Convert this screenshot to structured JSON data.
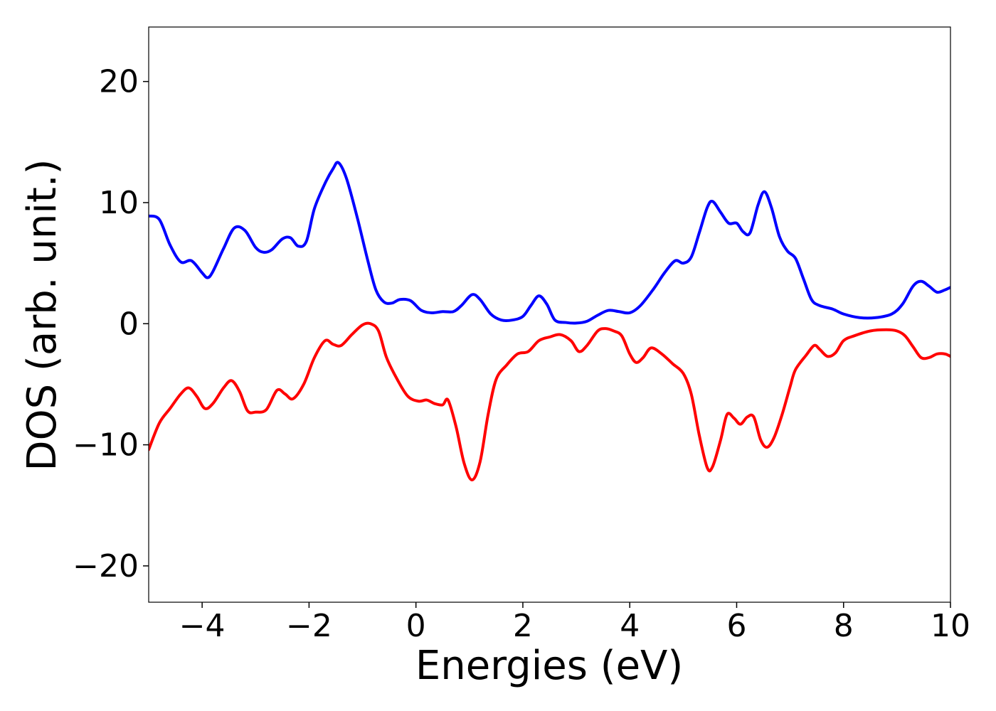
{
  "chart_data": {
    "type": "line",
    "title": "",
    "xlabel": "Energies (eV)",
    "ylabel": "DOS (arb. unit.)",
    "xlim": [
      -5,
      10
    ],
    "ylim": [
      -23,
      24.5
    ],
    "grid": false,
    "legend": "none",
    "x_ticks": [
      {
        "value": -4,
        "label": "−4"
      },
      {
        "value": -2,
        "label": "−2"
      },
      {
        "value": 0,
        "label": "0"
      },
      {
        "value": 2,
        "label": "2"
      },
      {
        "value": 4,
        "label": "4"
      },
      {
        "value": 6,
        "label": "6"
      },
      {
        "value": 8,
        "label": "8"
      },
      {
        "value": 10,
        "label": "10"
      }
    ],
    "y_ticks": [
      {
        "value": 20,
        "label": "20"
      },
      {
        "value": 10,
        "label": "10"
      },
      {
        "value": 0,
        "label": "0"
      },
      {
        "value": -10,
        "label": "−10"
      },
      {
        "value": -20,
        "label": "−20"
      }
    ],
    "series": [
      {
        "color": "#0000ff",
        "points": [
          [
            -5.0,
            8.9
          ],
          [
            -4.8,
            8.6
          ],
          [
            -4.6,
            6.5
          ],
          [
            -4.4,
            5.1
          ],
          [
            -4.2,
            5.2
          ],
          [
            -4.0,
            4.2
          ],
          [
            -3.9,
            3.8
          ],
          [
            -3.8,
            4.3
          ],
          [
            -3.6,
            6.2
          ],
          [
            -3.4,
            7.9
          ],
          [
            -3.2,
            7.7
          ],
          [
            -3.0,
            6.3
          ],
          [
            -2.85,
            5.9
          ],
          [
            -2.7,
            6.1
          ],
          [
            -2.5,
            7.0
          ],
          [
            -2.35,
            7.1
          ],
          [
            -2.2,
            6.4
          ],
          [
            -2.05,
            6.8
          ],
          [
            -1.9,
            9.5
          ],
          [
            -1.7,
            11.6
          ],
          [
            -1.55,
            12.8
          ],
          [
            -1.45,
            13.3
          ],
          [
            -1.3,
            12.0
          ],
          [
            -1.1,
            8.8
          ],
          [
            -0.9,
            5.2
          ],
          [
            -0.75,
            2.8
          ],
          [
            -0.6,
            1.8
          ],
          [
            -0.45,
            1.7
          ],
          [
            -0.3,
            2.0
          ],
          [
            -0.1,
            1.9
          ],
          [
            0.1,
            1.1
          ],
          [
            0.3,
            0.9
          ],
          [
            0.5,
            1.0
          ],
          [
            0.7,
            1.0
          ],
          [
            0.85,
            1.5
          ],
          [
            1.05,
            2.4
          ],
          [
            1.2,
            2.0
          ],
          [
            1.4,
            0.8
          ],
          [
            1.6,
            0.3
          ],
          [
            1.8,
            0.3
          ],
          [
            2.0,
            0.6
          ],
          [
            2.15,
            1.5
          ],
          [
            2.3,
            2.3
          ],
          [
            2.45,
            1.6
          ],
          [
            2.6,
            0.3
          ],
          [
            2.8,
            0.1
          ],
          [
            3.0,
            0.05
          ],
          [
            3.2,
            0.2
          ],
          [
            3.4,
            0.7
          ],
          [
            3.6,
            1.1
          ],
          [
            3.8,
            1.0
          ],
          [
            4.0,
            0.9
          ],
          [
            4.2,
            1.5
          ],
          [
            4.45,
            2.9
          ],
          [
            4.65,
            4.2
          ],
          [
            4.85,
            5.2
          ],
          [
            5.0,
            5.0
          ],
          [
            5.15,
            5.5
          ],
          [
            5.3,
            7.5
          ],
          [
            5.45,
            9.6
          ],
          [
            5.55,
            10.1
          ],
          [
            5.7,
            9.2
          ],
          [
            5.85,
            8.3
          ],
          [
            6.0,
            8.3
          ],
          [
            6.12,
            7.6
          ],
          [
            6.25,
            7.5
          ],
          [
            6.4,
            9.8
          ],
          [
            6.52,
            10.9
          ],
          [
            6.65,
            9.6
          ],
          [
            6.8,
            7.2
          ],
          [
            6.95,
            6.0
          ],
          [
            7.1,
            5.4
          ],
          [
            7.25,
            3.7
          ],
          [
            7.4,
            2.0
          ],
          [
            7.55,
            1.5
          ],
          [
            7.8,
            1.2
          ],
          [
            8.0,
            0.8
          ],
          [
            8.3,
            0.5
          ],
          [
            8.6,
            0.5
          ],
          [
            8.9,
            0.8
          ],
          [
            9.1,
            1.6
          ],
          [
            9.3,
            3.1
          ],
          [
            9.45,
            3.5
          ],
          [
            9.6,
            3.1
          ],
          [
            9.75,
            2.6
          ],
          [
            9.9,
            2.8
          ],
          [
            10.0,
            3.0
          ]
        ]
      },
      {
        "color": "#ff0000",
        "points": [
          [
            -5.0,
            -10.4
          ],
          [
            -4.8,
            -8.2
          ],
          [
            -4.6,
            -7.0
          ],
          [
            -4.4,
            -5.8
          ],
          [
            -4.25,
            -5.3
          ],
          [
            -4.1,
            -6.0
          ],
          [
            -3.95,
            -7.0
          ],
          [
            -3.8,
            -6.6
          ],
          [
            -3.6,
            -5.3
          ],
          [
            -3.45,
            -4.7
          ],
          [
            -3.3,
            -5.6
          ],
          [
            -3.15,
            -7.2
          ],
          [
            -3.0,
            -7.3
          ],
          [
            -2.8,
            -7.1
          ],
          [
            -2.6,
            -5.5
          ],
          [
            -2.45,
            -5.8
          ],
          [
            -2.3,
            -6.2
          ],
          [
            -2.1,
            -5.0
          ],
          [
            -1.9,
            -2.8
          ],
          [
            -1.7,
            -1.4
          ],
          [
            -1.55,
            -1.7
          ],
          [
            -1.4,
            -1.8
          ],
          [
            -1.2,
            -0.9
          ],
          [
            -1.0,
            -0.1
          ],
          [
            -0.85,
            0.0
          ],
          [
            -0.7,
            -0.6
          ],
          [
            -0.55,
            -2.8
          ],
          [
            -0.35,
            -4.6
          ],
          [
            -0.15,
            -6.0
          ],
          [
            0.05,
            -6.4
          ],
          [
            0.2,
            -6.3
          ],
          [
            0.35,
            -6.6
          ],
          [
            0.5,
            -6.7
          ],
          [
            0.6,
            -6.3
          ],
          [
            0.75,
            -8.5
          ],
          [
            0.9,
            -11.5
          ],
          [
            1.05,
            -12.9
          ],
          [
            1.2,
            -11.4
          ],
          [
            1.35,
            -7.5
          ],
          [
            1.5,
            -4.6
          ],
          [
            1.7,
            -3.4
          ],
          [
            1.9,
            -2.5
          ],
          [
            2.1,
            -2.3
          ],
          [
            2.3,
            -1.4
          ],
          [
            2.5,
            -1.1
          ],
          [
            2.7,
            -0.9
          ],
          [
            2.9,
            -1.4
          ],
          [
            3.05,
            -2.3
          ],
          [
            3.2,
            -1.8
          ],
          [
            3.4,
            -0.6
          ],
          [
            3.55,
            -0.4
          ],
          [
            3.7,
            -0.6
          ],
          [
            3.85,
            -1.0
          ],
          [
            4.0,
            -2.5
          ],
          [
            4.12,
            -3.2
          ],
          [
            4.25,
            -2.8
          ],
          [
            4.4,
            -2.0
          ],
          [
            4.6,
            -2.5
          ],
          [
            4.8,
            -3.3
          ],
          [
            5.0,
            -4.1
          ],
          [
            5.15,
            -5.8
          ],
          [
            5.3,
            -9.2
          ],
          [
            5.45,
            -11.9
          ],
          [
            5.55,
            -11.8
          ],
          [
            5.7,
            -9.6
          ],
          [
            5.82,
            -7.5
          ],
          [
            5.95,
            -7.8
          ],
          [
            6.07,
            -8.3
          ],
          [
            6.2,
            -7.7
          ],
          [
            6.32,
            -7.7
          ],
          [
            6.45,
            -9.6
          ],
          [
            6.57,
            -10.2
          ],
          [
            6.7,
            -9.4
          ],
          [
            6.85,
            -7.5
          ],
          [
            7.0,
            -5.2
          ],
          [
            7.1,
            -3.8
          ],
          [
            7.3,
            -2.6
          ],
          [
            7.45,
            -1.8
          ],
          [
            7.55,
            -2.1
          ],
          [
            7.7,
            -2.7
          ],
          [
            7.85,
            -2.4
          ],
          [
            8.0,
            -1.4
          ],
          [
            8.2,
            -1.0
          ],
          [
            8.5,
            -0.6
          ],
          [
            8.8,
            -0.5
          ],
          [
            9.0,
            -0.6
          ],
          [
            9.15,
            -1.0
          ],
          [
            9.3,
            -1.9
          ],
          [
            9.45,
            -2.8
          ],
          [
            9.6,
            -2.8
          ],
          [
            9.75,
            -2.5
          ],
          [
            9.9,
            -2.5
          ],
          [
            10.0,
            -2.7
          ]
        ]
      }
    ]
  }
}
